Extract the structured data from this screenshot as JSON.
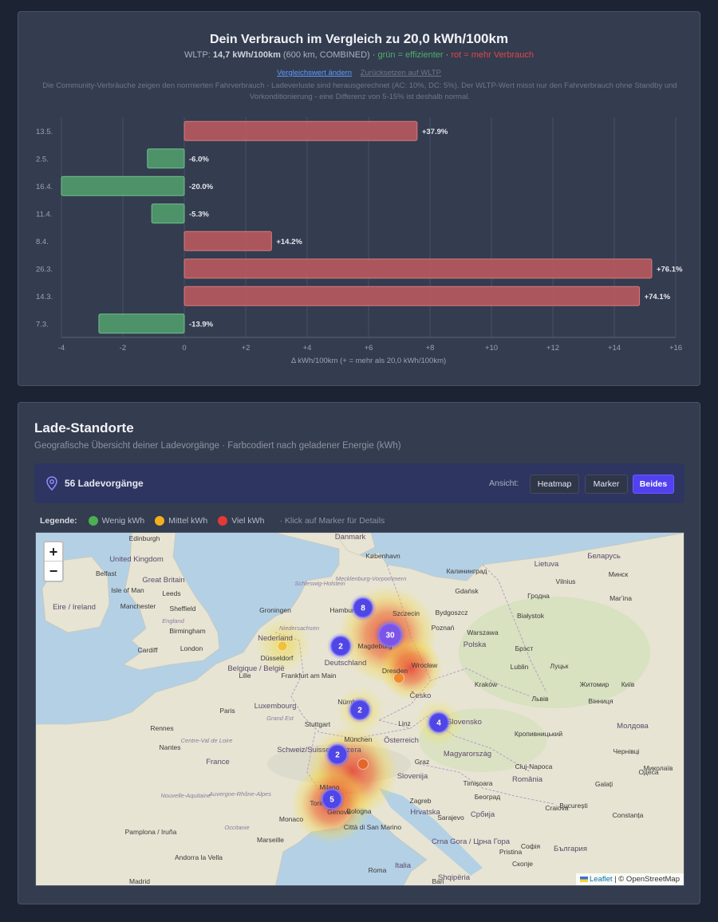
{
  "chart": {
    "title_prefix": "Dein Verbrauch im Vergleich zu",
    "title_value": "20,0 kWh/100km",
    "sub_prefix": "WLTP:",
    "sub_value": "14,7 kWh/100km",
    "sub_details": "(600 km, COMBINED) ·",
    "sub_green": "grün = effizienter",
    "sub_sep": "·",
    "sub_red": "rot = mehr Verbrauch",
    "link_change": "Vergleichswert ändern",
    "link_reset": "Zurücksetzen auf WLTP",
    "note": "Die Community-Verbräuche zeigen den normierten Fahrverbrauch - Ladeverluste sind herausgerechnet (AC: 10%, DC: 5%). Der WLTP-Wert misst nur den Fahrverbrauch ohne Standby und Vorkonditionierung - eine Differenz von 5-15% ist deshalb normal."
  },
  "chart_data": {
    "type": "bar",
    "orientation": "horizontal",
    "categories": [
      "13.5.",
      "2.5.",
      "16.4.",
      "11.4.",
      "8.4.",
      "26.3.",
      "14.3.",
      "7.3."
    ],
    "values": [
      7.58,
      -1.2,
      -4.0,
      -1.06,
      2.84,
      15.22,
      14.82,
      -2.78
    ],
    "data_labels": [
      "+37.9%",
      "-6.0%",
      "-20.0%",
      "-5.3%",
      "+14.2%",
      "+76.1%",
      "+74.1%",
      "-13.9%"
    ],
    "xlim": [
      -4,
      16
    ],
    "xticks": [
      "-4",
      "-2",
      "0",
      "+2",
      "+4",
      "+6",
      "+8",
      "+10",
      "+12",
      "+14",
      "+16"
    ],
    "xlabel": "Δ kWh/100km (+ = mehr als 20,0 kWh/100km)",
    "colors": {
      "positive": "#b5595d",
      "negative": "#4f9a6b"
    },
    "grid": true
  },
  "map_section": {
    "title": "Lade-Standorte",
    "subtitle": "Geografische Übersicht deiner Ladevorgänge · Farbcodiert nach geladener Energie (kWh)",
    "count_label": "56 Ladevorgänge",
    "view_label": "Ansicht:",
    "views": [
      "Heatmap",
      "Marker",
      "Beides"
    ],
    "active_view": "Beides",
    "legend_label": "Legende:",
    "legend": [
      {
        "label": "Wenig kWh",
        "color": "#4caf50"
      },
      {
        "label": "Mittel kWh",
        "color": "#f2b01e"
      },
      {
        "label": "Viel kWh",
        "color": "#e53935"
      }
    ],
    "legend_hint": "· Klick auf Marker für Details",
    "zoom_in": "+",
    "zoom_out": "−",
    "attribution_leaflet": "Leaflet",
    "attribution_rest": "| © OpenStreetMap"
  },
  "map_labels": [
    "Edinburgh",
    "United Kingdom",
    "Belfast",
    "Great Britain",
    "Isle of Man",
    "Leeds",
    "Eire / Ireland",
    "Manchester",
    "Sheffield",
    "England",
    "Birmingham",
    "Cardiff",
    "London",
    "Danmark",
    "København",
    "Schleswig-Holstein",
    "Mecklenburg-Vorpommern",
    "Hamburg",
    "Groningen",
    "Szczecin",
    "Nederland",
    "Niedersachsen",
    "Magdeburg",
    "Düsseldorf",
    "Deutschland",
    "Belgique / België",
    "Lille",
    "Frankfurt am Main",
    "Dresden",
    "Luxembourg",
    "Paris",
    "Grand Est",
    "Stuttgart",
    "Nürnberg",
    "Česko",
    "Linz",
    "München",
    "Österreich",
    "Rennes",
    "Nantes",
    "Centre-Val de Loire",
    "France",
    "Schweiz/Suisse/Svizzera",
    "Graz",
    "Slovenija",
    "Milano",
    "Torino",
    "Genova",
    "Bologna",
    "Hrvatska",
    "Monaco",
    "Nouvelle-Aquitaine",
    "Auvergne-Rhône-Alpes",
    "Occitanie",
    "Marseille",
    "Pamplona / Iruña",
    "Andorra la Vella",
    "Città di San Marino",
    "Italia",
    "Roma",
    "Bari",
    "Madrid",
    "Lietuva",
    "Vilnius",
    "Калининград",
    "Gdańsk",
    "Bydgoszcz",
    "Poznań",
    "Warszawa",
    "Polska",
    "Wrocław",
    "Kraków",
    "Lublin",
    "Slovensko",
    "Magyarország",
    "Zagreb",
    "România",
    "Cluj-Napoca",
    "București",
    "Timișoara",
    "Београд",
    "Србија",
    "Sarajevo",
    "Crna Gora / Црна Гора",
    "Shqipëria",
    "Скопје",
    "Беларусь",
    "Минск",
    "Гродна",
    "Białystok",
    "Брэст",
    "Marʼina",
    "Луцьк",
    "Житомир",
    "Київ",
    "Львів",
    "Вінниця",
    "Молдова",
    "Кропивницький",
    "Чернівці",
    "Миколаїв",
    "Одеса",
    "Galați",
    "Constanța",
    "Craiova",
    "Софія",
    "България",
    "Pristina"
  ],
  "map_clusters": [
    {
      "count": "8"
    },
    {
      "count": "30"
    },
    {
      "count": "2"
    },
    {
      "count": "2"
    },
    {
      "count": "4"
    },
    {
      "count": "2"
    },
    {
      "count": "5"
    }
  ]
}
